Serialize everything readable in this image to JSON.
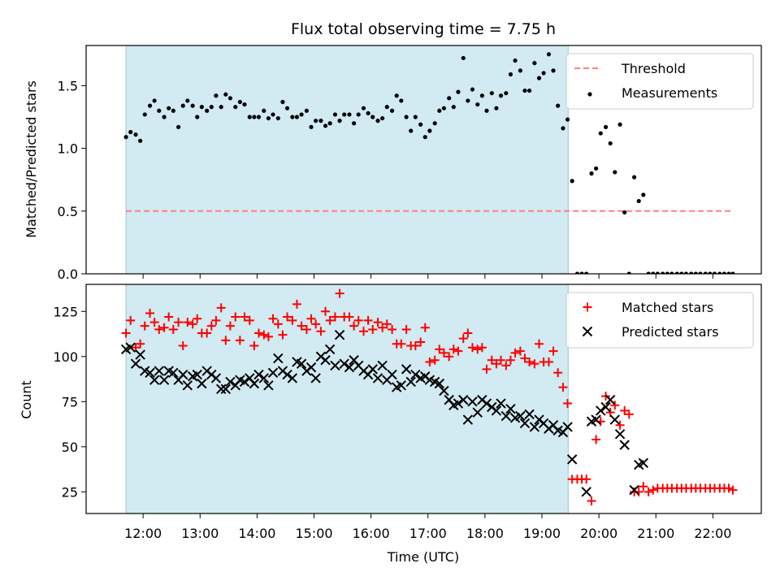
{
  "chart_data": {
    "type": "scatter",
    "title": "Flux total observing time = 7.75 h",
    "colors": {
      "shade": "#add8e6",
      "threshold": "#ff7f7f",
      "matched": "#ff0000",
      "predicted": "#000000",
      "measurement": "#000000"
    },
    "x_axis": {
      "label": "Time (UTC)",
      "unit": "hours",
      "range": [
        11.0,
        22.85
      ],
      "ticks": [
        {
          "value": 12,
          "label": "12:00"
        },
        {
          "value": 13,
          "label": "13:00"
        },
        {
          "value": 14,
          "label": "14:00"
        },
        {
          "value": 15,
          "label": "15:00"
        },
        {
          "value": 16,
          "label": "16:00"
        },
        {
          "value": 17,
          "label": "17:00"
        },
        {
          "value": 18,
          "label": "18:00"
        },
        {
          "value": 19,
          "label": "19:00"
        },
        {
          "value": 20,
          "label": "20:00"
        },
        {
          "value": 21,
          "label": "21:00"
        },
        {
          "value": 22,
          "label": "22:00"
        }
      ]
    },
    "shaded_interval": [
      11.7,
      19.46
    ],
    "panels": [
      {
        "name": "ratio",
        "ylabel": "Matched/Predicted stars",
        "ylim": [
          0,
          1.82
        ],
        "yticks": [
          {
            "value": 0.0,
            "label": "0.0"
          },
          {
            "value": 0.5,
            "label": "0.5"
          },
          {
            "value": 1.0,
            "label": "1.0"
          },
          {
            "value": 1.5,
            "label": "1.5"
          }
        ],
        "legend": {
          "position": "upper-right",
          "entries": [
            {
              "label": "Threshold",
              "marker": "dashed-line"
            },
            {
              "label": "Measurements",
              "marker": "dot"
            }
          ]
        },
        "threshold": {
          "name": "Threshold",
          "y": 0.5,
          "x_range": [
            11.7,
            22.35
          ]
        },
        "series": [
          {
            "name": "Measurements",
            "marker": "dot",
            "x": [
              11.7,
              11.78,
              11.87,
              11.95,
              12.03,
              12.12,
              12.2,
              12.28,
              12.37,
              12.45,
              12.53,
              12.62,
              12.7,
              12.78,
              12.87,
              12.95,
              13.03,
              13.12,
              13.2,
              13.28,
              13.37,
              13.45,
              13.53,
              13.62,
              13.7,
              13.78,
              13.87,
              13.95,
              14.03,
              14.12,
              14.2,
              14.28,
              14.37,
              14.45,
              14.53,
              14.62,
              14.7,
              14.78,
              14.87,
              14.95,
              15.03,
              15.12,
              15.2,
              15.28,
              15.37,
              15.45,
              15.53,
              15.62,
              15.7,
              15.78,
              15.87,
              15.95,
              16.03,
              16.12,
              16.2,
              16.28,
              16.37,
              16.45,
              16.53,
              16.62,
              16.7,
              16.78,
              16.87,
              16.95,
              17.03,
              17.12,
              17.2,
              17.28,
              17.37,
              17.45,
              17.53,
              17.62,
              17.7,
              17.78,
              17.87,
              17.95,
              18.03,
              18.12,
              18.2,
              18.28,
              18.37,
              18.45,
              18.53,
              18.62,
              18.7,
              18.78,
              18.87,
              18.95,
              19.03,
              19.12,
              19.2,
              19.28,
              19.37,
              19.45,
              19.53,
              19.62,
              19.7,
              19.78,
              19.87,
              19.95,
              20.03,
              20.12,
              20.2,
              20.28,
              20.37,
              20.45,
              20.53,
              20.62,
              20.7,
              20.78,
              20.87,
              20.95,
              21.03,
              21.12,
              21.2,
              21.28,
              21.37,
              21.45,
              21.53,
              21.62,
              21.7,
              21.78,
              21.87,
              21.95,
              22.03,
              22.12,
              22.2,
              22.28,
              22.35
            ],
            "y": [
              1.09,
              1.13,
              1.11,
              1.06,
              1.27,
              1.34,
              1.38,
              1.3,
              1.25,
              1.32,
              1.3,
              1.17,
              1.34,
              1.38,
              1.34,
              1.25,
              1.33,
              1.3,
              1.33,
              1.42,
              1.33,
              1.43,
              1.4,
              1.33,
              1.37,
              1.35,
              1.25,
              1.25,
              1.25,
              1.3,
              1.24,
              1.27,
              1.24,
              1.37,
              1.32,
              1.25,
              1.25,
              1.27,
              1.3,
              1.17,
              1.22,
              1.22,
              1.18,
              1.2,
              1.27,
              1.22,
              1.27,
              1.27,
              1.2,
              1.27,
              1.32,
              1.28,
              1.25,
              1.22,
              1.24,
              1.33,
              1.3,
              1.42,
              1.38,
              1.25,
              1.14,
              1.25,
              1.19,
              1.09,
              1.14,
              1.2,
              1.3,
              1.32,
              1.4,
              1.33,
              1.45,
              1.72,
              1.38,
              1.47,
              1.35,
              1.42,
              1.3,
              1.44,
              1.32,
              1.42,
              1.44,
              1.59,
              1.7,
              1.62,
              1.46,
              1.46,
              1.68,
              1.56,
              1.6,
              1.75,
              1.62,
              1.34,
              1.16,
              1.23,
              0.74,
              0,
              0,
              0,
              0.8,
              0.84,
              1.12,
              1.17,
              1.04,
              0.81,
              1.19,
              0.49,
              0,
              0.77,
              0.58,
              0.63,
              0,
              0,
              0,
              0,
              0,
              0,
              0,
              0,
              0,
              0,
              0,
              0,
              0,
              0,
              0,
              0,
              0,
              0,
              0
            ]
          }
        ]
      },
      {
        "name": "counts",
        "ylabel": "Count",
        "ylim": [
          13,
          140
        ],
        "yticks": [
          {
            "value": 25,
            "label": "25"
          },
          {
            "value": 50,
            "label": "50"
          },
          {
            "value": 75,
            "label": "75"
          },
          {
            "value": 100,
            "label": "100"
          },
          {
            "value": 125,
            "label": "125"
          }
        ],
        "legend": {
          "position": "upper-right",
          "entries": [
            {
              "label": "Matched stars",
              "marker": "plus"
            },
            {
              "label": "Predicted stars",
              "marker": "x"
            }
          ]
        },
        "series": [
          {
            "name": "Matched stars",
            "marker": "plus",
            "x": [
              11.7,
              11.78,
              11.87,
              11.95,
              12.03,
              12.12,
              12.2,
              12.28,
              12.37,
              12.45,
              12.53,
              12.62,
              12.7,
              12.78,
              12.87,
              12.95,
              13.03,
              13.12,
              13.2,
              13.28,
              13.37,
              13.45,
              13.53,
              13.62,
              13.7,
              13.78,
              13.87,
              13.95,
              14.03,
              14.12,
              14.2,
              14.28,
              14.37,
              14.45,
              14.53,
              14.62,
              14.7,
              14.78,
              14.87,
              14.95,
              15.03,
              15.12,
              15.2,
              15.28,
              15.37,
              15.45,
              15.53,
              15.62,
              15.7,
              15.78,
              15.87,
              15.95,
              16.03,
              16.12,
              16.2,
              16.28,
              16.37,
              16.45,
              16.53,
              16.62,
              16.7,
              16.78,
              16.87,
              16.95,
              17.03,
              17.12,
              17.2,
              17.28,
              17.37,
              17.45,
              17.53,
              17.62,
              17.7,
              17.78,
              17.87,
              17.95,
              18.03,
              18.12,
              18.2,
              18.28,
              18.37,
              18.45,
              18.53,
              18.62,
              18.7,
              18.78,
              18.87,
              18.95,
              19.03,
              19.12,
              19.2,
              19.28,
              19.37,
              19.45,
              19.53,
              19.62,
              19.7,
              19.78,
              19.87,
              19.95,
              20.03,
              20.12,
              20.2,
              20.28,
              20.37,
              20.45,
              20.53,
              20.62,
              20.7,
              20.78,
              20.87,
              20.95,
              21.03,
              21.12,
              21.2,
              21.28,
              21.37,
              21.45,
              21.53,
              21.62,
              21.7,
              21.78,
              21.87,
              21.95,
              22.03,
              22.12,
              22.2,
              22.28,
              22.35
            ],
            "y": [
              113,
              120,
              105,
              107,
              117,
              124,
              119,
              115,
              116,
              122,
              115,
              119,
              106,
              119,
              118,
              121,
              113,
              113,
              117,
              120,
              127,
              109,
              117,
              122,
              109,
              122,
              120,
              106,
              113,
              112,
              111,
              121,
              118,
              112,
              122,
              120,
              129,
              117,
              115,
              121,
              118,
              114,
              125,
              120,
              122,
              135,
              122,
              122,
              117,
              120,
              114,
              120,
              115,
              119,
              116,
              118,
              115,
              107,
              107,
              115,
              106,
              106,
              108,
              116,
              97,
              98,
              104,
              102,
              100,
              104,
              103,
              110,
              113,
              105,
              104,
              105,
              93,
              98,
              96,
              98,
              95,
              98,
              102,
              103,
              99,
              97,
              96,
              107,
              97,
              97,
              103,
              91,
              83,
              74,
              32,
              32,
              32,
              32,
              20,
              54,
              64,
              78,
              69,
              73,
              62,
              70,
              68,
              25,
              25,
              28,
              25,
              26,
              27,
              27,
              27,
              27,
              27,
              27,
              27,
              27,
              27,
              27,
              27,
              27,
              27,
              27,
              27,
              27,
              26
            ],
            "y_note": "per-point approximate"
          },
          {
            "name": "Predicted stars",
            "marker": "x",
            "x": [
              11.7,
              11.78,
              11.87,
              11.95,
              12.03,
              12.12,
              12.2,
              12.28,
              12.37,
              12.45,
              12.53,
              12.62,
              12.7,
              12.78,
              12.87,
              12.95,
              13.03,
              13.12,
              13.2,
              13.28,
              13.37,
              13.45,
              13.53,
              13.62,
              13.7,
              13.78,
              13.87,
              13.95,
              14.03,
              14.12,
              14.2,
              14.28,
              14.37,
              14.45,
              14.53,
              14.62,
              14.7,
              14.78,
              14.87,
              14.95,
              15.03,
              15.12,
              15.2,
              15.28,
              15.37,
              15.45,
              15.53,
              15.62,
              15.7,
              15.78,
              15.87,
              15.95,
              16.03,
              16.12,
              16.2,
              16.28,
              16.37,
              16.45,
              16.53,
              16.62,
              16.7,
              16.78,
              16.87,
              16.95,
              17.03,
              17.12,
              17.2,
              17.28,
              17.37,
              17.45,
              17.53,
              17.62,
              17.7,
              17.78,
              17.87,
              17.95,
              18.03,
              18.12,
              18.2,
              18.28,
              18.37,
              18.45,
              18.53,
              18.62,
              18.7,
              18.78,
              18.87,
              18.95,
              19.03,
              19.12,
              19.2,
              19.28,
              19.37,
              19.45,
              19.53,
              19.78,
              19.87,
              19.95,
              20.03,
              20.12,
              20.2,
              20.28,
              20.37,
              20.45,
              20.62,
              20.7,
              20.78
            ],
            "y": [
              104,
              105,
              96,
              101,
              92,
              91,
              87,
              92,
              87,
              92,
              91,
              87,
              90,
              84,
              89,
              90,
              85,
              92,
              90,
              88,
              82,
              82,
              86,
              84,
              87,
              86,
              88,
              85,
              90,
              88,
              84,
              91,
              99,
              92,
              90,
              88,
              97,
              96,
              92,
              94,
              88,
              100,
              98,
              104,
              95,
              112,
              96,
              94,
              98,
              95,
              92,
              90,
              93,
              88,
              95,
              87,
              90,
              83,
              84,
              93,
              86,
              90,
              88,
              89,
              87,
              86,
              85,
              81,
              76,
              73,
              74,
              76,
              65,
              75,
              69,
              76,
              74,
              72,
              70,
              74,
              67,
              71,
              66,
              67,
              63,
              68,
              61,
              65,
              63,
              60,
              62,
              59,
              58,
              61,
              43,
              25,
              64,
              65,
              70,
              72,
              76,
              65,
              57,
              51,
              26,
              40,
              41
            ]
          }
        ]
      }
    ]
  }
}
